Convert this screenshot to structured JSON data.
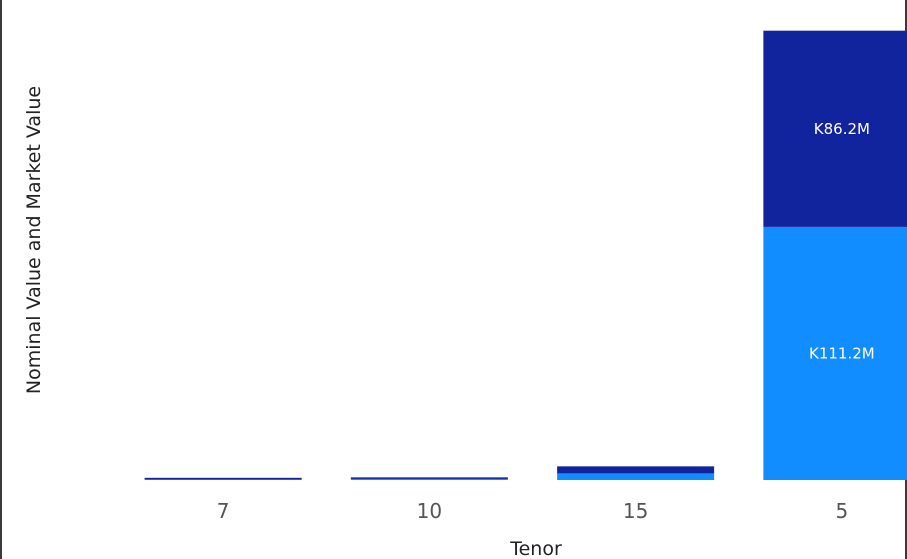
{
  "chart_data": {
    "type": "bar",
    "stacked": true,
    "xlabel": "Tenor",
    "ylabel": "Nominal Value and Market Value",
    "categories": [
      "7",
      "10",
      "15",
      "5"
    ],
    "series": [
      {
        "values": [
          0.3,
          0.5,
          2.9,
          111.2
        ],
        "color": "#118dff"
      },
      {
        "values": [
          0.5,
          0.6,
          3.1,
          86.2
        ],
        "color": "#12239e"
      }
    ],
    "data_labels": [
      {
        "category": "5",
        "series_index": 1,
        "text": "K86.2M"
      },
      {
        "category": "5",
        "series_index": 0,
        "text": "K111.2M"
      }
    ],
    "ylim": [
      0,
      210
    ],
    "grid": false,
    "legend": "none"
  }
}
